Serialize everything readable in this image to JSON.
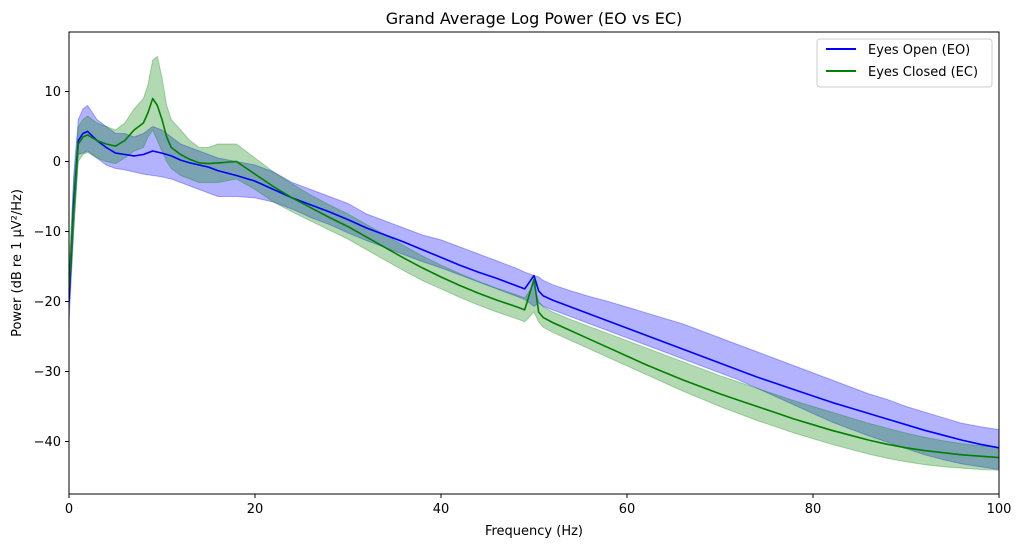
{
  "chart_data": {
    "type": "line",
    "title": "Grand Average Log Power (EO vs EC)",
    "xlabel": "Frequency (Hz)",
    "ylabel": "Power (dB re 1 µV²/Hz)",
    "xlim": [
      0,
      100
    ],
    "ylim": [
      -47.5,
      18.5
    ],
    "xticks": [
      0,
      20,
      40,
      60,
      80,
      100
    ],
    "yticks": [
      -40,
      -30,
      -20,
      -10,
      0,
      10
    ],
    "grid": false,
    "legend_position": "top-right",
    "series": [
      {
        "name": "Eyes Open (EO)",
        "color": "#0000ff",
        "band_color": "#0000ff",
        "band_opacity": 0.3,
        "x": [
          0,
          0.5,
          1,
          1.5,
          2,
          3,
          4,
          5,
          6,
          7,
          8,
          9,
          10,
          11,
          12,
          13,
          14,
          15,
          16,
          18,
          20,
          22,
          24,
          26,
          28,
          30,
          32,
          34,
          36,
          38,
          40,
          42,
          44,
          46,
          48,
          49,
          50,
          50.5,
          51,
          52,
          54,
          56,
          58,
          60,
          62,
          64,
          66,
          68,
          70,
          72,
          74,
          76,
          78,
          80,
          82,
          84,
          86,
          88,
          90,
          92,
          94,
          96,
          98,
          100
        ],
        "y": [
          -20,
          -6,
          3,
          4,
          4.3,
          3,
          2,
          1.2,
          1,
          0.8,
          1,
          1.5,
          1.2,
          0.8,
          0.2,
          -0.2,
          -0.5,
          -0.8,
          -1.3,
          -2,
          -2.8,
          -4,
          -5.2,
          -6.2,
          -7.2,
          -8.3,
          -9.5,
          -10.5,
          -11.5,
          -12.6,
          -13.7,
          -14.8,
          -15.8,
          -16.7,
          -17.7,
          -18.2,
          -16.3,
          -18.5,
          -19.2,
          -19.8,
          -20.8,
          -21.8,
          -22.8,
          -23.8,
          -24.8,
          -25.8,
          -26.8,
          -27.8,
          -28.8,
          -29.8,
          -30.8,
          -31.7,
          -32.6,
          -33.5,
          -34.4,
          -35.2,
          -36,
          -36.8,
          -37.6,
          -38.4,
          -39.1,
          -39.8,
          -40.4,
          -40.9
        ],
        "upper": [
          -18,
          -2,
          6,
          7.5,
          8,
          6,
          5,
          4,
          4,
          3.5,
          4,
          5,
          4.5,
          3.5,
          2.5,
          2,
          1.5,
          1,
          0.5,
          0,
          -0.5,
          -1.5,
          -3,
          -4,
          -5,
          -6,
          -7.5,
          -8.5,
          -9.5,
          -10.5,
          -11.2,
          -12.2,
          -13.2,
          -14.2,
          -15.2,
          -15.8,
          -16.3,
          -16.5,
          -17,
          -17.6,
          -18.5,
          -19.3,
          -20,
          -20.8,
          -21.6,
          -22.4,
          -23.2,
          -24.2,
          -25.2,
          -26.2,
          -27.2,
          -28.2,
          -29.2,
          -30.2,
          -31.2,
          -32.2,
          -33.2,
          -34,
          -35,
          -35.8,
          -36.6,
          -37.4,
          -37.9,
          -38.3
        ],
        "lower": [
          -23,
          -10,
          1,
          1.2,
          1.5,
          0.5,
          -0.5,
          -1,
          -1.2,
          -1.5,
          -1.8,
          -2,
          -2.2,
          -2.5,
          -3,
          -3.5,
          -4,
          -4.5,
          -5,
          -5,
          -5.2,
          -5.8,
          -6.8,
          -8,
          -9,
          -10.2,
          -11.3,
          -12.3,
          -13.3,
          -14.3,
          -15.2,
          -16.2,
          -17.2,
          -18.2,
          -19.2,
          -19.7,
          -20.7,
          -20.2,
          -20.7,
          -21.2,
          -22.2,
          -23.2,
          -24.2,
          -25.2,
          -26.2,
          -27.2,
          -28.2,
          -29.2,
          -30.2,
          -31.2,
          -32.4,
          -33.6,
          -34.8,
          -36,
          -37.2,
          -38.2,
          -39.2,
          -40.1,
          -41,
          -41.9,
          -42.6,
          -43.2,
          -43.6,
          -44
        ]
      },
      {
        "name": "Eyes Closed (EC)",
        "color": "#008000",
        "band_color": "#008000",
        "band_opacity": 0.3,
        "x": [
          0,
          0.5,
          1,
          1.5,
          2,
          3,
          4,
          5,
          6,
          7,
          8,
          8.5,
          9,
          9.5,
          10,
          10.5,
          11,
          12,
          13,
          14,
          15,
          16,
          18,
          20,
          22,
          24,
          26,
          28,
          30,
          32,
          34,
          36,
          38,
          40,
          42,
          44,
          46,
          48,
          49,
          50,
          50.5,
          51,
          52,
          54,
          56,
          58,
          60,
          62,
          64,
          66,
          68,
          70,
          72,
          74,
          76,
          78,
          80,
          82,
          84,
          86,
          88,
          90,
          92,
          94,
          96,
          98,
          100
        ],
        "y": [
          -18,
          -7,
          2.5,
          3.5,
          3.8,
          3,
          2.5,
          2.2,
          3,
          4.5,
          5.5,
          7,
          9,
          8,
          6,
          3.5,
          2,
          1,
          0.3,
          -0.2,
          -0.3,
          -0.2,
          0,
          -1.8,
          -3.6,
          -5.2,
          -6.6,
          -8,
          -9.3,
          -10.8,
          -12.3,
          -13.8,
          -15.2,
          -16.5,
          -17.7,
          -18.8,
          -19.8,
          -20.7,
          -21.2,
          -16.8,
          -21.5,
          -22.3,
          -23,
          -24.2,
          -25.4,
          -26.6,
          -27.8,
          -29,
          -30.1,
          -31.2,
          -32.2,
          -33.2,
          -34.1,
          -35,
          -35.9,
          -36.8,
          -37.6,
          -38.4,
          -39.1,
          -39.8,
          -40.4,
          -40.9,
          -41.3,
          -41.6,
          -41.9,
          -42.1,
          -42.3
        ],
        "upper": [
          -15,
          -3,
          5,
          6,
          6.5,
          5.5,
          5,
          4.5,
          5.5,
          7.5,
          9,
          11,
          14.5,
          15,
          12,
          8,
          6,
          4.5,
          3,
          2,
          2,
          2.5,
          2.5,
          0.5,
          -1.5,
          -3.2,
          -4.8,
          -6.2,
          -7.5,
          -9,
          -10.5,
          -12,
          -13.5,
          -14.8,
          -16,
          -17.1,
          -18.1,
          -19,
          -19.5,
          -17.5,
          -20,
          -20.8,
          -21.5,
          -22.6,
          -23.6,
          -24.6,
          -25.6,
          -26.6,
          -27.6,
          -28.6,
          -29.6,
          -30.6,
          -31.5,
          -32.4,
          -33.3,
          -34.2,
          -35,
          -35.8,
          -36.6,
          -37.4,
          -38.1,
          -38.8,
          -39.4,
          -39.9,
          -40.3,
          -40.6,
          -40.8
        ],
        "lower": [
          -21,
          -10,
          0,
          1,
          1.3,
          0.5,
          0,
          -0.3,
          0.5,
          1.5,
          2,
          3.5,
          4.5,
          3,
          1.5,
          0,
          -1,
          -2,
          -2.5,
          -3,
          -3,
          -3,
          -2.5,
          -4,
          -5.8,
          -7.2,
          -8.5,
          -9.8,
          -11.1,
          -12.6,
          -14.1,
          -15.6,
          -17,
          -18.2,
          -19.4,
          -20.5,
          -21.5,
          -22.4,
          -22.9,
          -21.5,
          -22.9,
          -23.7,
          -24.4,
          -25.6,
          -26.8,
          -28,
          -29.2,
          -30.4,
          -31.6,
          -32.8,
          -33.9,
          -35,
          -36,
          -37,
          -37.9,
          -38.8,
          -39.6,
          -40.4,
          -41.1,
          -41.8,
          -42.4,
          -42.9,
          -43.3,
          -43.6,
          -43.8,
          -44,
          -44.1
        ]
      }
    ]
  }
}
